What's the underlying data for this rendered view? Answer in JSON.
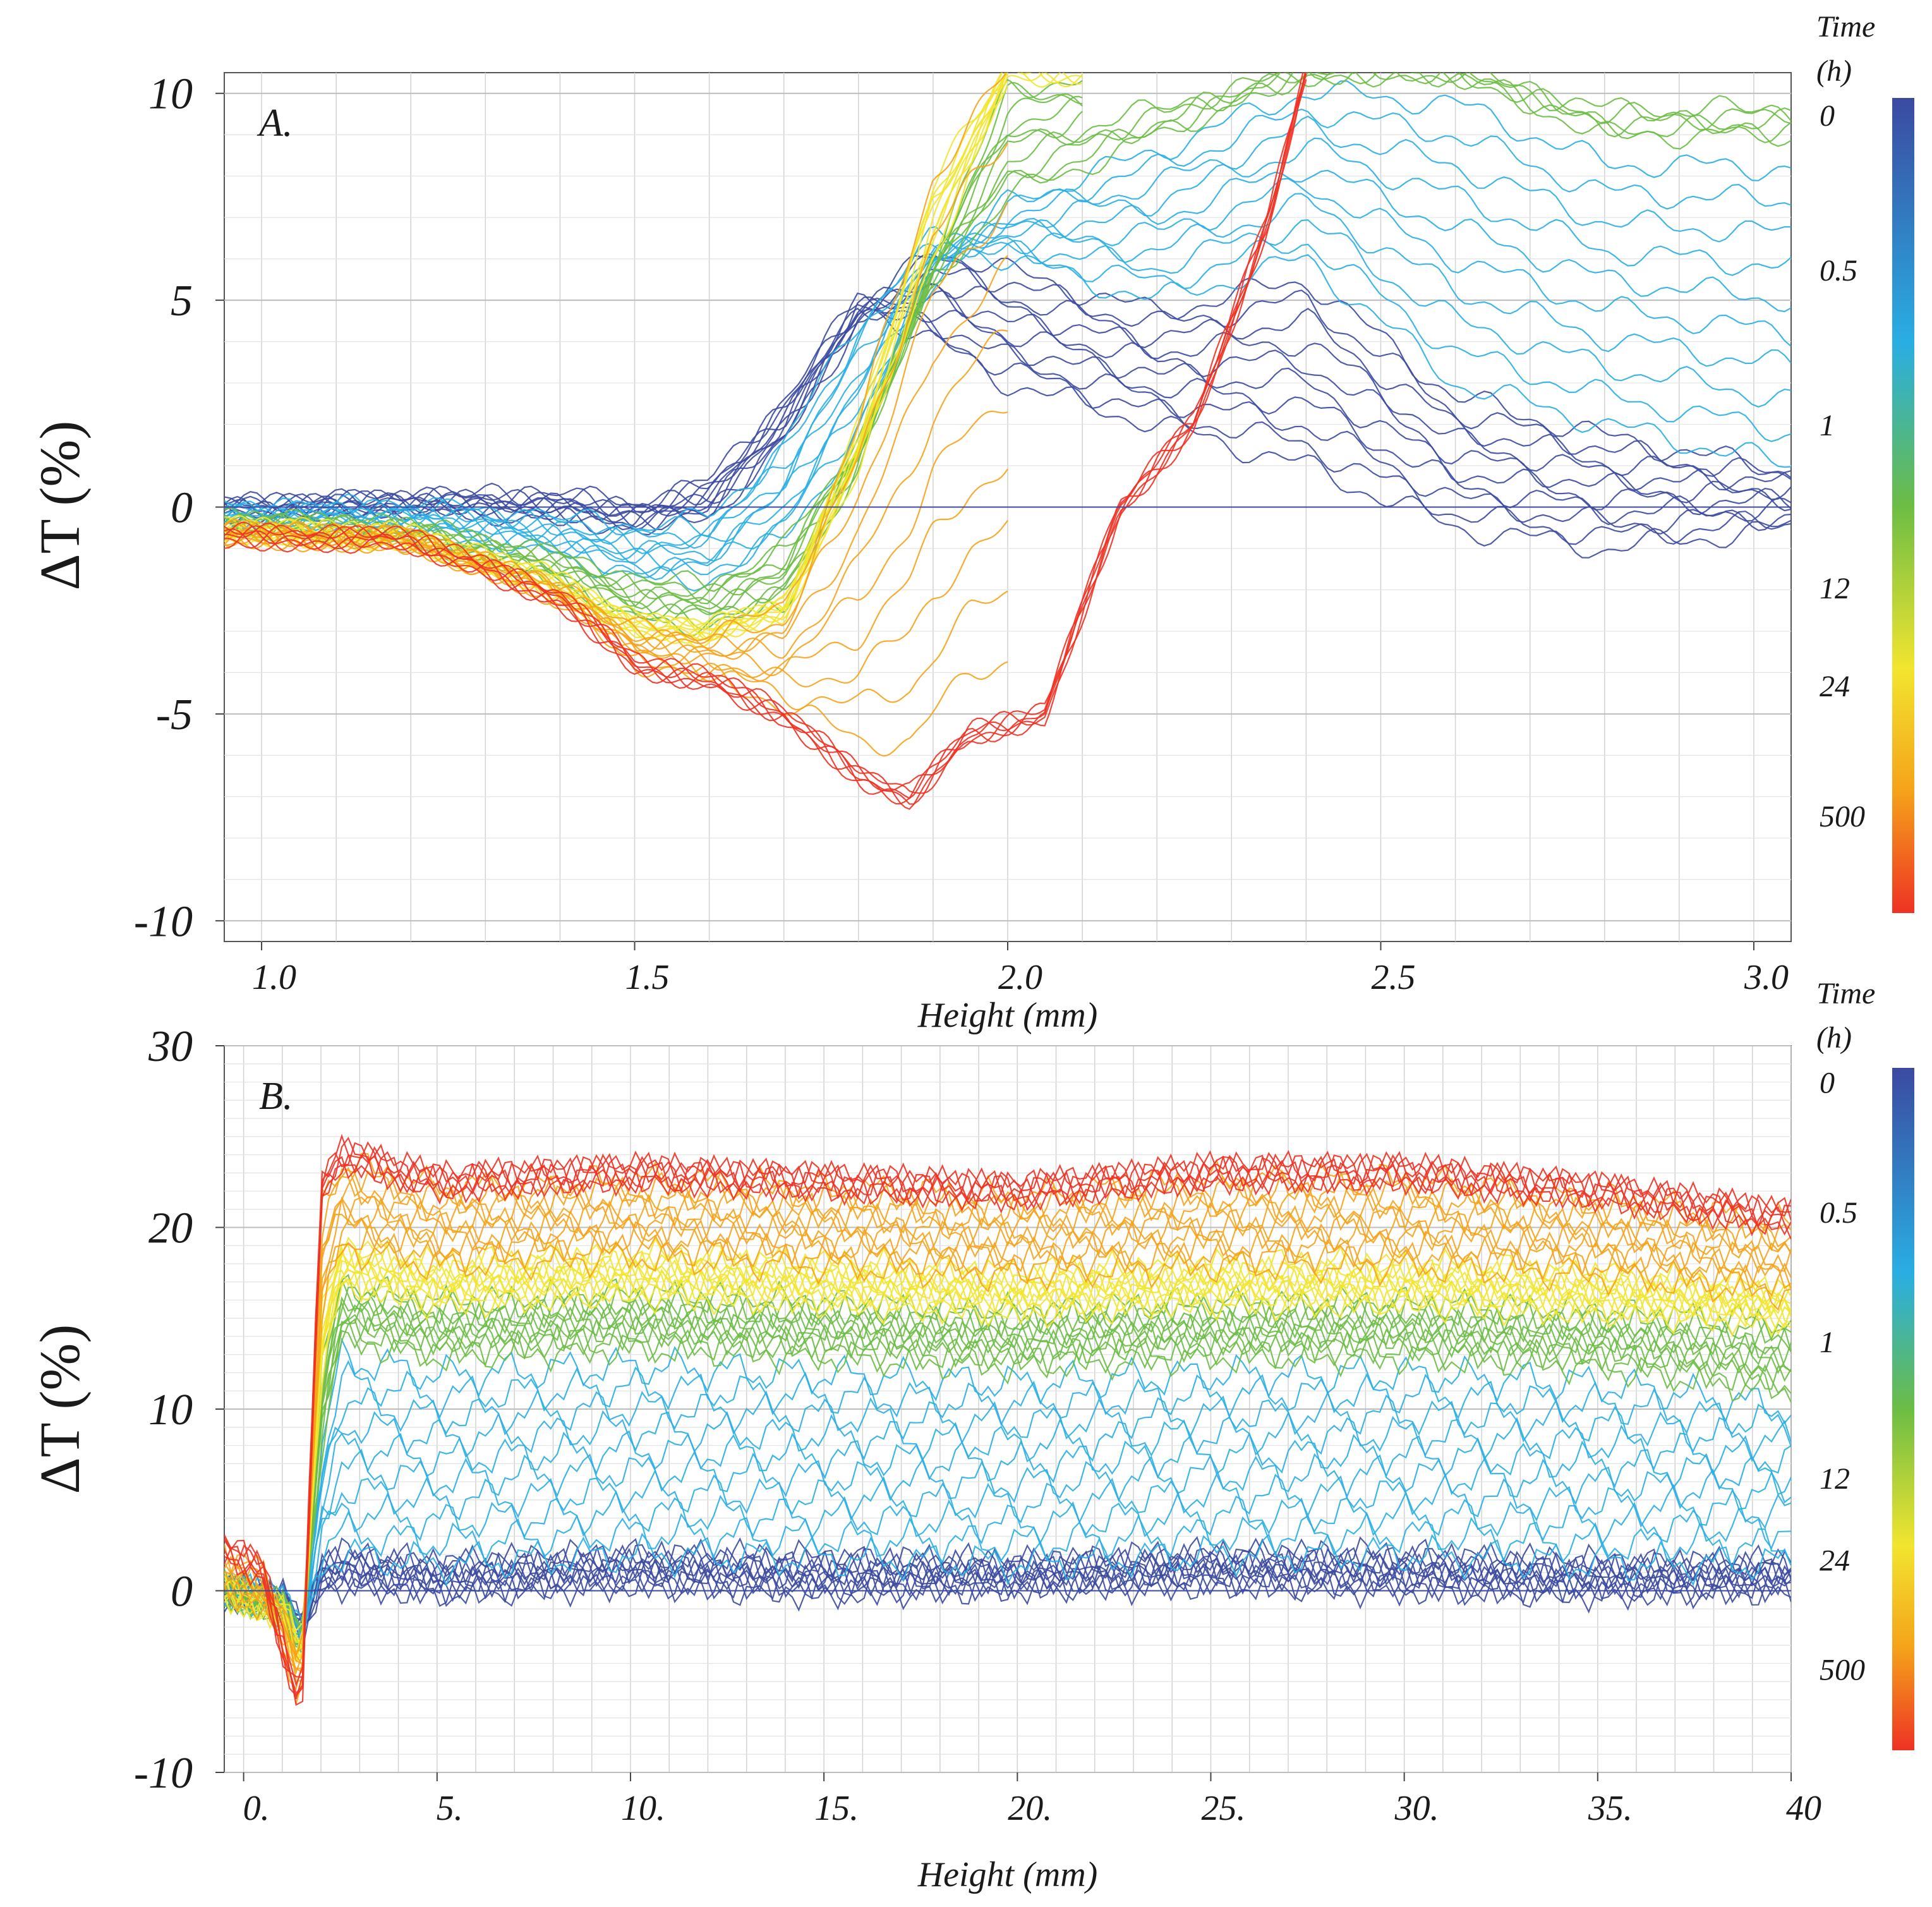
{
  "figure": {
    "panels": [
      {
        "id": "A",
        "panel_label": "A.",
        "xlabel": "Height (mm)",
        "ylabel": "ΔT (%)",
        "xlim": [
          0.95,
          3.05
        ],
        "ylim": [
          -10.5,
          10.5
        ],
        "xticks": [
          {
            "v": 1.0,
            "label": "1.0"
          },
          {
            "v": 1.5,
            "label": "1.5"
          },
          {
            "v": 2.0,
            "label": "2.0"
          },
          {
            "v": 2.5,
            "label": "2.5"
          },
          {
            "v": 3.0,
            "label": "3.0"
          }
        ],
        "yticks": [
          {
            "v": 10,
            "label": "10"
          },
          {
            "v": 5,
            "label": "5"
          },
          {
            "v": 0,
            "label": "0"
          },
          {
            "v": -5,
            "label": "-5"
          },
          {
            "v": -10,
            "label": "-10"
          }
        ],
        "colorbar": {
          "title_line1": "Time",
          "title_line2": "(h)",
          "labels": [
            "0",
            "0.5",
            "1",
            "12",
            "24",
            "500"
          ]
        }
      },
      {
        "id": "B",
        "panel_label": "B.",
        "xlabel": "Height (mm)",
        "ylabel": "ΔT (%)",
        "xlim": [
          -0.5,
          40
        ],
        "ylim": [
          -10,
          30
        ],
        "xticks": [
          {
            "v": 0,
            "label": "0."
          },
          {
            "v": 5,
            "label": "5."
          },
          {
            "v": 10,
            "label": "10."
          },
          {
            "v": 15,
            "label": "15."
          },
          {
            "v": 20,
            "label": "20."
          },
          {
            "v": 25,
            "label": "25."
          },
          {
            "v": 30,
            "label": "30."
          },
          {
            "v": 35,
            "label": "35."
          },
          {
            "v": 40,
            "label": "40"
          }
        ],
        "yticks": [
          {
            "v": 30,
            "label": "30"
          },
          {
            "v": 20,
            "label": "20"
          },
          {
            "v": 10,
            "label": "10"
          },
          {
            "v": 0,
            "label": "0"
          },
          {
            "v": -10,
            "label": "-10"
          }
        ],
        "colorbar": {
          "title_line1": "Time",
          "title_line2": "(h)",
          "labels": [
            "0",
            "0.5",
            "1",
            "12",
            "24",
            "500"
          ]
        }
      }
    ]
  },
  "chart_data": [
    {
      "type": "line",
      "panel": "A",
      "xlabel": "Height (mm)",
      "ylabel": "ΔT (%)",
      "xlim": [
        0.95,
        3.05
      ],
      "ylim": [
        -10.5,
        10.5
      ],
      "grid": true,
      "legend": "colorbar-right",
      "colormap": [
        "#3b4aa0",
        "#29aee3",
        "#6cbd45",
        "#f2e52f",
        "#ee3224"
      ],
      "series": [
        {
          "time_h": "0",
          "color": "#3b4aa0",
          "x": [
            0.95,
            1.2,
            1.4,
            1.5,
            1.6,
            1.7,
            1.8,
            1.9,
            2.0,
            2.2,
            2.4,
            2.6,
            2.8,
            3.05
          ],
          "y": [
            0.0,
            0.2,
            0.3,
            0.0,
            0.6,
            2.5,
            5.0,
            4.0,
            3.0,
            2.0,
            1.0,
            -0.5,
            -1.0,
            -0.5
          ]
        },
        {
          "time_h": "0.5",
          "color": "#29aee3",
          "x": [
            0.95,
            1.2,
            1.4,
            1.5,
            1.6,
            1.7,
            1.8,
            1.9,
            2.0,
            2.2,
            2.4,
            2.6,
            2.8,
            3.05
          ],
          "y": [
            -0.1,
            0.0,
            -0.3,
            -0.5,
            -0.3,
            1.5,
            4.5,
            6.5,
            6.0,
            5.0,
            6.0,
            3.0,
            2.0,
            1.0
          ]
        },
        {
          "time_h": "1",
          "color": "#6cbd45",
          "x": [
            0.95,
            1.2,
            1.4,
            1.5,
            1.6,
            1.7,
            1.8,
            1.9,
            2.0,
            2.2,
            2.4,
            2.6,
            2.8,
            3.05
          ],
          "y": [
            -0.3,
            -0.5,
            -1.2,
            -1.8,
            -1.9,
            -1.0,
            1.5,
            5.5,
            7.5,
            9.0,
            10.5,
            10.5,
            9.0,
            9.0
          ]
        },
        {
          "time_h": "12",
          "color": "#f2e52f",
          "x": [
            0.95,
            1.2,
            1.4,
            1.5,
            1.6,
            1.7,
            1.8,
            1.9,
            2.0,
            2.1
          ],
          "y": [
            -0.5,
            -0.7,
            -1.8,
            -2.8,
            -2.9,
            -2.5,
            1.0,
            6.0,
            10.5,
            10.5
          ]
        },
        {
          "time_h": "24",
          "color": "#f5a31a",
          "x": [
            0.95,
            1.2,
            1.4,
            1.5,
            1.6,
            1.7,
            1.8,
            1.9,
            2.0
          ],
          "y": [
            -0.6,
            -0.8,
            -2.0,
            -3.0,
            -3.1,
            -2.5,
            2.0,
            8.0,
            10.5
          ]
        },
        {
          "time_h": "500",
          "color": "#ee3224",
          "x": [
            0.95,
            1.2,
            1.4,
            1.5,
            1.6,
            1.7,
            1.8,
            1.87,
            1.95,
            2.05,
            2.15,
            2.25,
            2.35,
            2.4
          ],
          "y": [
            -0.7,
            -0.8,
            -2.2,
            -3.8,
            -4.2,
            -5.0,
            -6.5,
            -7.0,
            -5.5,
            -5.0,
            0.0,
            2.0,
            7.0,
            10.5
          ]
        }
      ]
    },
    {
      "type": "line",
      "panel": "B",
      "xlabel": "Height (mm)",
      "ylabel": "ΔT (%)",
      "xlim": [
        -0.5,
        40
      ],
      "ylim": [
        -10,
        30
      ],
      "grid": true,
      "legend": "colorbar-right",
      "colormap": [
        "#3b4aa0",
        "#29aee3",
        "#6cbd45",
        "#f2e52f",
        "#ee3224"
      ],
      "series": [
        {
          "time_h": "0",
          "color": "#3b4aa0",
          "x": [
            -0.5,
            1.0,
            1.5,
            2.0,
            2.5,
            5,
            10,
            15,
            20,
            25,
            30,
            35,
            40
          ],
          "y": [
            0.0,
            -0.5,
            -2.0,
            0.5,
            0.5,
            0.0,
            0.5,
            0.0,
            0.3,
            0.5,
            0.2,
            0.0,
            0.2
          ]
        },
        {
          "time_h": "0.5",
          "color": "#29aee3",
          "x": [
            -0.5,
            1.0,
            1.5,
            2.0,
            2.5,
            5,
            10,
            15,
            20,
            25,
            30,
            35,
            40
          ],
          "y": [
            0.0,
            -0.5,
            -2.5,
            1.5,
            2.0,
            1.5,
            2.0,
            1.8,
            1.5,
            2.0,
            2.0,
            1.5,
            1.5
          ]
        },
        {
          "time_h": "1",
          "color": "#6cbd45",
          "x": [
            -0.5,
            1.0,
            1.5,
            2.0,
            2.5,
            5,
            10,
            15,
            20,
            25,
            30,
            35,
            40
          ],
          "y": [
            0.0,
            -0.8,
            -3.0,
            8.0,
            14.0,
            13.0,
            13.5,
            13.0,
            12.5,
            13.0,
            13.0,
            12.5,
            11.0
          ]
        },
        {
          "time_h": "12",
          "color": "#f2e52f",
          "x": [
            -0.5,
            1.0,
            1.5,
            2.0,
            2.5,
            5,
            10,
            15,
            20,
            25,
            30,
            35,
            40
          ],
          "y": [
            0.0,
            -1.0,
            -3.5,
            12.0,
            17.0,
            16.0,
            16.5,
            16.0,
            15.5,
            16.0,
            16.0,
            15.5,
            15.0
          ]
        },
        {
          "time_h": "24",
          "color": "#f5a31a",
          "x": [
            -0.5,
            1.0,
            1.5,
            2.0,
            2.5,
            5,
            10,
            15,
            20,
            25,
            30,
            35,
            40
          ],
          "y": [
            0.0,
            -1.2,
            -4.0,
            15.0,
            19.0,
            18.0,
            18.5,
            18.0,
            17.5,
            18.0,
            18.0,
            17.5,
            16.5
          ]
        },
        {
          "time_h": "500",
          "color": "#ee3224",
          "x": [
            -0.5,
            0.5,
            1.0,
            1.5,
            2.0,
            2.5,
            5,
            10,
            15,
            20,
            25,
            30,
            35,
            40
          ],
          "y": [
            2.5,
            1.0,
            -3.0,
            -6.5,
            22.0,
            24.0,
            22.5,
            23.0,
            22.5,
            22.0,
            23.0,
            23.0,
            22.0,
            20.5
          ]
        }
      ]
    }
  ]
}
